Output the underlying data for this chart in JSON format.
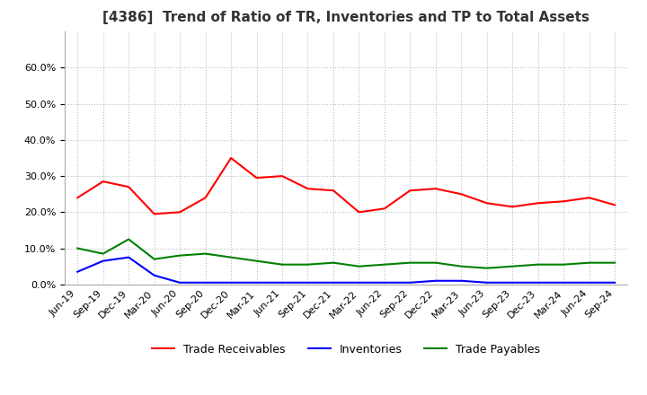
{
  "title": "[4386]  Trend of Ratio of TR, Inventories and TP to Total Assets",
  "x_labels": [
    "Jun-19",
    "Sep-19",
    "Dec-19",
    "Mar-20",
    "Jun-20",
    "Sep-20",
    "Dec-20",
    "Mar-21",
    "Jun-21",
    "Sep-21",
    "Dec-21",
    "Mar-22",
    "Jun-22",
    "Sep-22",
    "Dec-22",
    "Mar-23",
    "Jun-23",
    "Sep-23",
    "Dec-23",
    "Mar-24",
    "Jun-24",
    "Sep-24"
  ],
  "trade_receivables": [
    0.24,
    0.285,
    0.27,
    0.195,
    0.2,
    0.24,
    0.35,
    0.295,
    0.3,
    0.265,
    0.26,
    0.2,
    0.21,
    0.26,
    0.265,
    0.25,
    0.225,
    0.215,
    0.225,
    0.23,
    0.24,
    0.22
  ],
  "inventories": [
    0.035,
    0.065,
    0.075,
    0.025,
    0.005,
    0.005,
    0.005,
    0.005,
    0.005,
    0.005,
    0.005,
    0.005,
    0.005,
    0.005,
    0.01,
    0.01,
    0.005,
    0.005,
    0.005,
    0.005,
    0.005,
    0.005
  ],
  "trade_payables": [
    0.1,
    0.085,
    0.125,
    0.07,
    0.08,
    0.085,
    0.075,
    0.065,
    0.055,
    0.055,
    0.06,
    0.05,
    0.055,
    0.06,
    0.06,
    0.05,
    0.045,
    0.05,
    0.055,
    0.055,
    0.06,
    0.06
  ],
  "tr_color": "#ff0000",
  "inv_color": "#0000ff",
  "tp_color": "#008000",
  "ylim": [
    0.0,
    0.7
  ],
  "yticks": [
    0.0,
    0.1,
    0.2,
    0.3,
    0.4,
    0.5,
    0.6
  ],
  "background_color": "#ffffff",
  "grid_color": "#bbbbbb",
  "title_fontsize": 11,
  "tick_fontsize": 8,
  "legend_fontsize": 9
}
